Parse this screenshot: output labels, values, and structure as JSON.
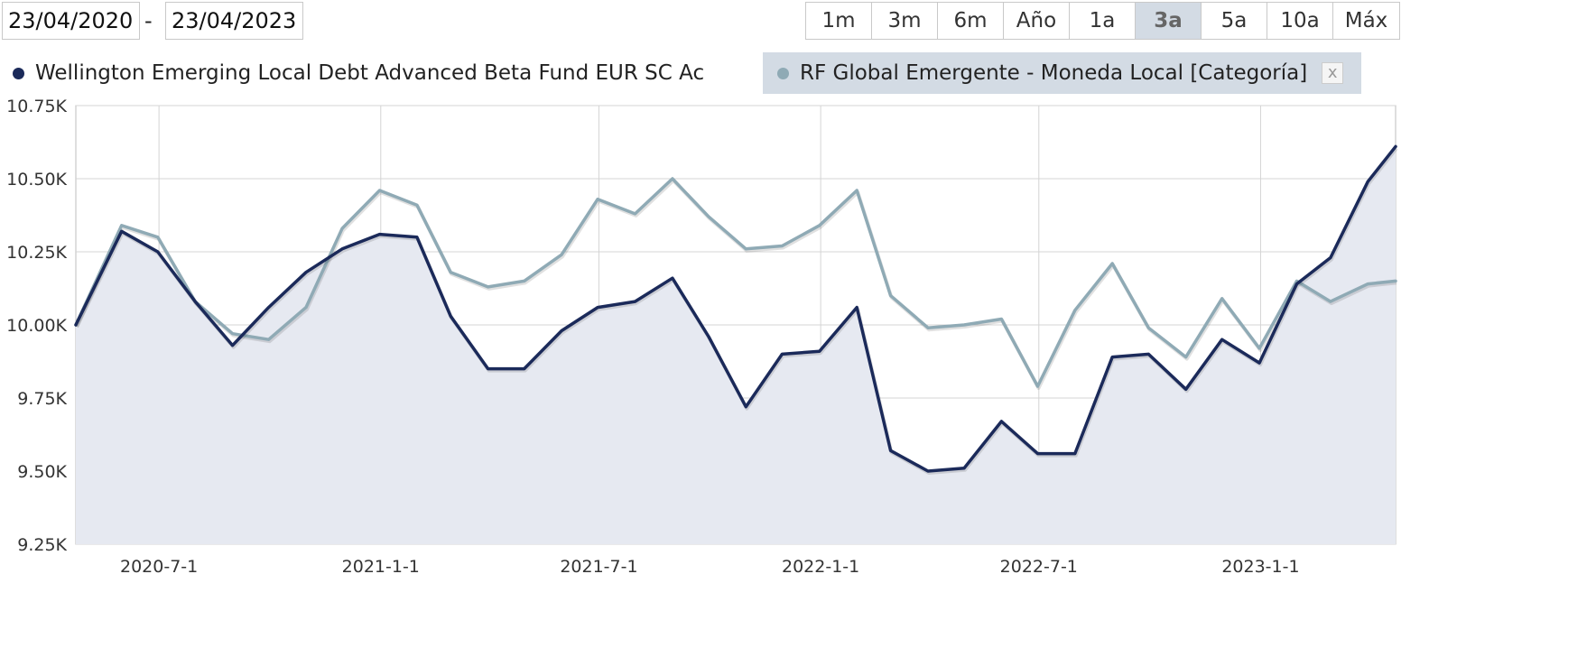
{
  "date_range": {
    "from": "23/04/2020",
    "separator": "-",
    "to": "23/04/2023"
  },
  "range_buttons": [
    "1m",
    "3m",
    "6m",
    "Año",
    "1a",
    "3a",
    "5a",
    "10a",
    "Máx"
  ],
  "active_range": "3a",
  "legend": [
    {
      "label": "Wellington Emerging Local Debt Advanced Beta Fund EUR SC Ac",
      "color": "#1b2a5a"
    },
    {
      "label": "RF Global Emergente - Moneda Local [Categoría]",
      "color": "#8faab5",
      "close": "x"
    }
  ],
  "chart_data": {
    "type": "line",
    "x_tick_labels": [
      "2020-7-1",
      "2021-1-1",
      "2021-7-1",
      "2022-1-1",
      "2022-7-1",
      "2023-1-1"
    ],
    "y_tick_labels": [
      "9.25K",
      "9.50K",
      "9.75K",
      "10.00K",
      "10.25K",
      "10.50K",
      "10.75K"
    ],
    "y_ticks": [
      9250,
      9500,
      9750,
      10000,
      10250,
      10500,
      10750
    ],
    "ylim": [
      9250,
      10750
    ],
    "xlim": [
      "2020-04-23",
      "2023-04-23"
    ],
    "grid": true,
    "x": [
      "2020-04-23",
      "2020-05-31",
      "2020-06-30",
      "2020-07-31",
      "2020-08-31",
      "2020-09-30",
      "2020-10-31",
      "2020-11-30",
      "2020-12-31",
      "2021-01-31",
      "2021-02-28",
      "2021-03-31",
      "2021-04-30",
      "2021-05-31",
      "2021-06-30",
      "2021-07-31",
      "2021-08-31",
      "2021-09-30",
      "2021-10-31",
      "2021-11-30",
      "2021-12-31",
      "2022-01-31",
      "2022-02-28",
      "2022-03-31",
      "2022-04-30",
      "2022-05-31",
      "2022-06-30",
      "2022-07-31",
      "2022-08-31",
      "2022-09-30",
      "2022-10-31",
      "2022-11-30",
      "2022-12-31",
      "2023-01-31",
      "2023-02-28",
      "2023-03-31",
      "2023-04-23"
    ],
    "series": [
      {
        "name": "Wellington Emerging Local Debt Advanced Beta Fund EUR SC Ac",
        "color": "#1b2a5a",
        "values": [
          10000,
          10320,
          10250,
          10080,
          9930,
          10060,
          10180,
          10260,
          10310,
          10300,
          10030,
          9850,
          9850,
          9980,
          10060,
          10080,
          10160,
          9960,
          9720,
          9900,
          9910,
          10060,
          9570,
          9500,
          9510,
          9670,
          9560,
          9560,
          9890,
          9900,
          9780,
          9950,
          9870,
          10140,
          10230,
          10490,
          10610
        ]
      },
      {
        "name": "RF Global Emergente - Moneda Local [Categoría]",
        "color": "#8faab5",
        "values": [
          10000,
          10340,
          10300,
          10080,
          9970,
          9950,
          10060,
          10330,
          10460,
          10410,
          10180,
          10130,
          10150,
          10240,
          10430,
          10380,
          10500,
          10370,
          10260,
          10270,
          10340,
          10460,
          10100,
          9990,
          10000,
          10020,
          9790,
          10050,
          10210,
          9990,
          9890,
          10090,
          9920,
          10150,
          10080,
          10140,
          10150
        ]
      }
    ]
  }
}
